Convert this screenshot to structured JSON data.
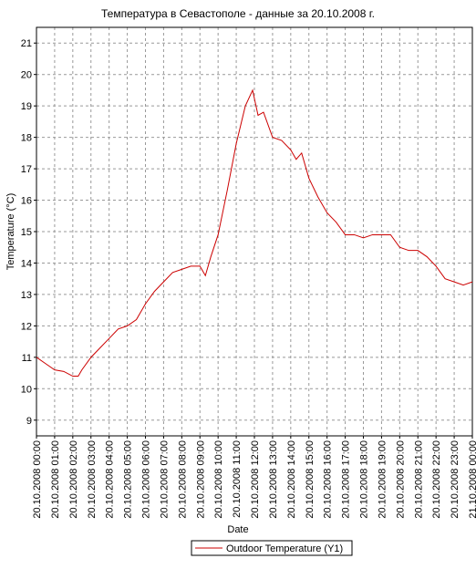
{
  "chart_data": {
    "type": "line",
    "title": "Температура в Севастополе - данные за 20.10.2008 г.",
    "xlabel": "Date",
    "ylabel": "Temperature (°C)",
    "x": [
      0,
      0.5,
      1,
      1.5,
      2,
      2.3,
      2.5,
      3,
      3.5,
      4,
      4.5,
      5,
      5.5,
      6,
      6.5,
      7,
      7.5,
      8,
      8.5,
      9,
      9.3,
      9.6,
      10,
      10.5,
      11,
      11.5,
      11.9,
      12.2,
      12.5,
      13,
      13.5,
      14,
      14.3,
      14.6,
      15,
      15.5,
      16,
      16.5,
      17,
      17.5,
      18,
      18.5,
      19,
      19.5,
      20,
      20.5,
      21,
      21.5,
      22,
      22.5,
      23,
      23.5,
      24
    ],
    "series": [
      {
        "name": "Outdoor Temperature (Y1)",
        "color": "#cc0000",
        "values": [
          11.0,
          10.8,
          10.6,
          10.55,
          10.4,
          10.4,
          10.6,
          11.0,
          11.3,
          11.6,
          11.9,
          12.0,
          12.2,
          12.7,
          13.1,
          13.4,
          13.7,
          13.8,
          13.9,
          13.9,
          13.6,
          14.2,
          14.9,
          16.3,
          17.8,
          19.0,
          19.5,
          18.7,
          18.8,
          18.0,
          17.9,
          17.6,
          17.3,
          17.5,
          16.7,
          16.1,
          15.6,
          15.3,
          14.9,
          14.9,
          14.8,
          14.9,
          14.9,
          14.9,
          14.5,
          14.4,
          14.4,
          14.2,
          13.9,
          13.5,
          13.4,
          13.3,
          13.4
        ]
      }
    ],
    "xlim": [
      0,
      24
    ],
    "xticks": [
      {
        "value": 0,
        "label": "20.10.2008 00:00"
      },
      {
        "value": 1,
        "label": "20.10.2008 01:00"
      },
      {
        "value": 2,
        "label": "20.10.2008 02:00"
      },
      {
        "value": 3,
        "label": "20.10.2008 03:00"
      },
      {
        "value": 4,
        "label": "20.10.2008 04:00"
      },
      {
        "value": 5,
        "label": "20.10.2008 05:00"
      },
      {
        "value": 6,
        "label": "20.10.2008 06:00"
      },
      {
        "value": 7,
        "label": "20.10.2008 07:00"
      },
      {
        "value": 8,
        "label": "20.10.2008 08:00"
      },
      {
        "value": 9,
        "label": "20.10.2008 09:00"
      },
      {
        "value": 10,
        "label": "20.10.2008 10:00"
      },
      {
        "value": 11,
        "label": "20.10.2008 11:00"
      },
      {
        "value": 12,
        "label": "20.10.2008 12:00"
      },
      {
        "value": 13,
        "label": "20.10.2008 13:00"
      },
      {
        "value": 14,
        "label": "20.10.2008 14:00"
      },
      {
        "value": 15,
        "label": "20.10.2008 15:00"
      },
      {
        "value": 16,
        "label": "20.10.2008 16:00"
      },
      {
        "value": 17,
        "label": "20.10.2008 17:00"
      },
      {
        "value": 18,
        "label": "20.10.2008 18:00"
      },
      {
        "value": 19,
        "label": "20.10.2008 19:00"
      },
      {
        "value": 20,
        "label": "20.10.2008 20:00"
      },
      {
        "value": 21,
        "label": "20.10.2008 21:00"
      },
      {
        "value": 22,
        "label": "20.10.2008 22:00"
      },
      {
        "value": 23,
        "label": "20.10.2008 23:00"
      },
      {
        "value": 24,
        "label": "21.10.2008 00:00"
      }
    ],
    "ylim": [
      8.5,
      21.5
    ],
    "yticks": [
      9,
      10,
      11,
      12,
      13,
      14,
      15,
      16,
      17,
      18,
      19,
      20,
      21
    ],
    "grid": true
  }
}
